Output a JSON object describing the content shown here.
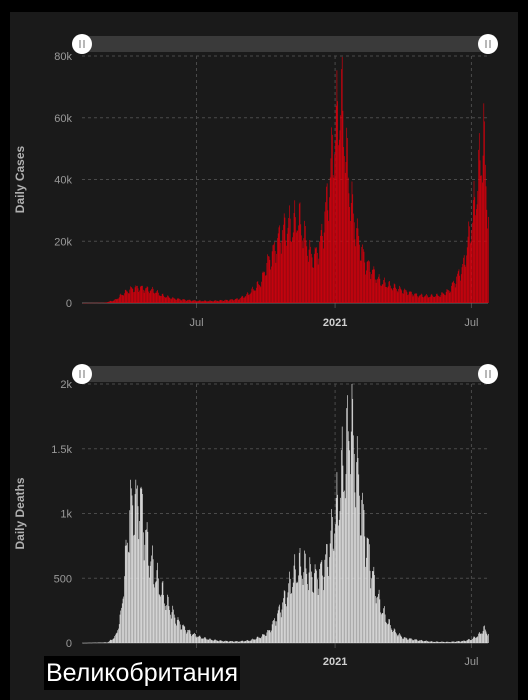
{
  "country": "Великобритания",
  "colors": {
    "background": "#1a1a1a",
    "cases": "#d9000d",
    "deaths": "#ececec",
    "grid": "#4a4a4a",
    "tick_text": "#9a9a9a",
    "axis_title": "#b0b0b0",
    "slider_track": "#3a3a3a",
    "handle": "#ffffff"
  },
  "x_axis": {
    "ticks": [
      {
        "label": "Jul",
        "date": "2020-07-01",
        "bold": false
      },
      {
        "label": "2021",
        "date": "2021-01-01",
        "bold": true
      },
      {
        "label": "Jul",
        "date": "2021-07-01",
        "bold": false
      }
    ]
  },
  "chart_data": [
    {
      "type": "bar",
      "ylabel": "Daily Cases",
      "ylim": [
        0,
        80000
      ],
      "yticks": [
        {
          "value": 0,
          "label": "0"
        },
        {
          "value": 20000,
          "label": "20k"
        },
        {
          "value": 40000,
          "label": "40k"
        },
        {
          "value": 60000,
          "label": "60k"
        },
        {
          "value": 80000,
          "label": "80k"
        }
      ],
      "x_range": [
        "2020-01-31",
        "2021-07-23"
      ],
      "series": [
        {
          "color": "#d9000d",
          "points": [
            [
              "2020-01-31",
              0
            ],
            [
              "2020-03-01",
              100
            ],
            [
              "2020-03-15",
              1000
            ],
            [
              "2020-03-25",
              3000
            ],
            [
              "2020-04-05",
              4500
            ],
            [
              "2020-04-15",
              5000
            ],
            [
              "2020-04-25",
              4500
            ],
            [
              "2020-05-05",
              4000
            ],
            [
              "2020-05-15",
              2500
            ],
            [
              "2020-05-30",
              1500
            ],
            [
              "2020-06-15",
              1000
            ],
            [
              "2020-07-01",
              700
            ],
            [
              "2020-07-20",
              650
            ],
            [
              "2020-08-10",
              900
            ],
            [
              "2020-08-25",
              1300
            ],
            [
              "2020-09-05",
              2500
            ],
            [
              "2020-09-15",
              4500
            ],
            [
              "2020-09-25",
              7000
            ],
            [
              "2020-10-01",
              12000
            ],
            [
              "2020-10-10",
              16000
            ],
            [
              "2020-10-20",
              22000
            ],
            [
              "2020-10-30",
              25000
            ],
            [
              "2020-11-05",
              24000
            ],
            [
              "2020-11-12",
              28000
            ],
            [
              "2020-11-20",
              22000
            ],
            [
              "2020-11-30",
              15000
            ],
            [
              "2020-12-05",
              15000
            ],
            [
              "2020-12-12",
              19000
            ],
            [
              "2020-12-18",
              28000
            ],
            [
              "2020-12-24",
              38000
            ],
            [
              "2020-12-29",
              50000
            ],
            [
              "2021-01-04",
              60000
            ],
            [
              "2021-01-08",
              66000
            ],
            [
              "2021-01-12",
              58000
            ],
            [
              "2021-01-18",
              40000
            ],
            [
              "2021-01-25",
              28000
            ],
            [
              "2021-02-01",
              20000
            ],
            [
              "2021-02-10",
              13000
            ],
            [
              "2021-02-20",
              10000
            ],
            [
              "2021-03-01",
              7000
            ],
            [
              "2021-03-15",
              5500
            ],
            [
              "2021-04-01",
              4000
            ],
            [
              "2021-04-20",
              2500
            ],
            [
              "2021-05-05",
              2200
            ],
            [
              "2021-05-20",
              2500
            ],
            [
              "2021-06-01",
              4000
            ],
            [
              "2021-06-10",
              7500
            ],
            [
              "2021-06-20",
              12000
            ],
            [
              "2021-06-28",
              22000
            ],
            [
              "2021-07-05",
              32000
            ],
            [
              "2021-07-12",
              45000
            ],
            [
              "2021-07-17",
              52000
            ],
            [
              "2021-07-20",
              40000
            ],
            [
              "2021-07-23",
              28000
            ]
          ]
        }
      ]
    },
    {
      "type": "bar",
      "ylabel": "Daily Deaths",
      "ylim": [
        0,
        2000
      ],
      "yticks": [
        {
          "value": 0,
          "label": "0"
        },
        {
          "value": 500,
          "label": "500"
        },
        {
          "value": 1000,
          "label": "1k"
        },
        {
          "value": 1500,
          "label": "1.5k"
        },
        {
          "value": 2000,
          "label": "2k"
        }
      ],
      "x_range": [
        "2020-01-31",
        "2021-07-23"
      ],
      "series": [
        {
          "color": "#ececec",
          "points": [
            [
              "2020-01-31",
              0
            ],
            [
              "2020-03-05",
              5
            ],
            [
              "2020-03-15",
              50
            ],
            [
              "2020-03-22",
              200
            ],
            [
              "2020-03-28",
              600
            ],
            [
              "2020-04-03",
              1000
            ],
            [
              "2020-04-08",
              1100
            ],
            [
              "2020-04-12",
              1050
            ],
            [
              "2020-04-16",
              1150
            ],
            [
              "2020-04-22",
              900
            ],
            [
              "2020-04-28",
              700
            ],
            [
              "2020-05-05",
              550
            ],
            [
              "2020-05-12",
              450
            ],
            [
              "2020-05-20",
              330
            ],
            [
              "2020-05-28",
              250
            ],
            [
              "2020-06-05",
              170
            ],
            [
              "2020-06-15",
              110
            ],
            [
              "2020-06-25",
              70
            ],
            [
              "2020-07-05",
              45
            ],
            [
              "2020-07-20",
              25
            ],
            [
              "2020-08-05",
              15
            ],
            [
              "2020-08-25",
              12
            ],
            [
              "2020-09-10",
              20
            ],
            [
              "2020-09-25",
              50
            ],
            [
              "2020-10-05",
              90
            ],
            [
              "2020-10-15",
              200
            ],
            [
              "2020-10-25",
              330
            ],
            [
              "2020-11-01",
              430
            ],
            [
              "2020-11-08",
              530
            ],
            [
              "2020-11-15",
              580
            ],
            [
              "2020-11-22",
              570
            ],
            [
              "2020-11-30",
              520
            ],
            [
              "2020-12-07",
              500
            ],
            [
              "2020-12-14",
              550
            ],
            [
              "2020-12-21",
              650
            ],
            [
              "2020-12-28",
              850
            ],
            [
              "2021-01-04",
              1050
            ],
            [
              "2021-01-10",
              1300
            ],
            [
              "2021-01-15",
              1400
            ],
            [
              "2021-01-20",
              1750
            ],
            [
              "2021-01-25",
              1550
            ],
            [
              "2021-02-01",
              1200
            ],
            [
              "2021-02-08",
              900
            ],
            [
              "2021-02-15",
              650
            ],
            [
              "2021-02-22",
              450
            ],
            [
              "2021-03-01",
              300
            ],
            [
              "2021-03-10",
              180
            ],
            [
              "2021-03-20",
              90
            ],
            [
              "2021-04-01",
              40
            ],
            [
              "2021-04-20",
              22
            ],
            [
              "2021-05-10",
              10
            ],
            [
              "2021-06-01",
              8
            ],
            [
              "2021-06-20",
              15
            ],
            [
              "2021-07-01",
              30
            ],
            [
              "2021-07-10",
              60
            ],
            [
              "2021-07-18",
              110
            ],
            [
              "2021-07-23",
              70
            ]
          ]
        }
      ]
    }
  ]
}
